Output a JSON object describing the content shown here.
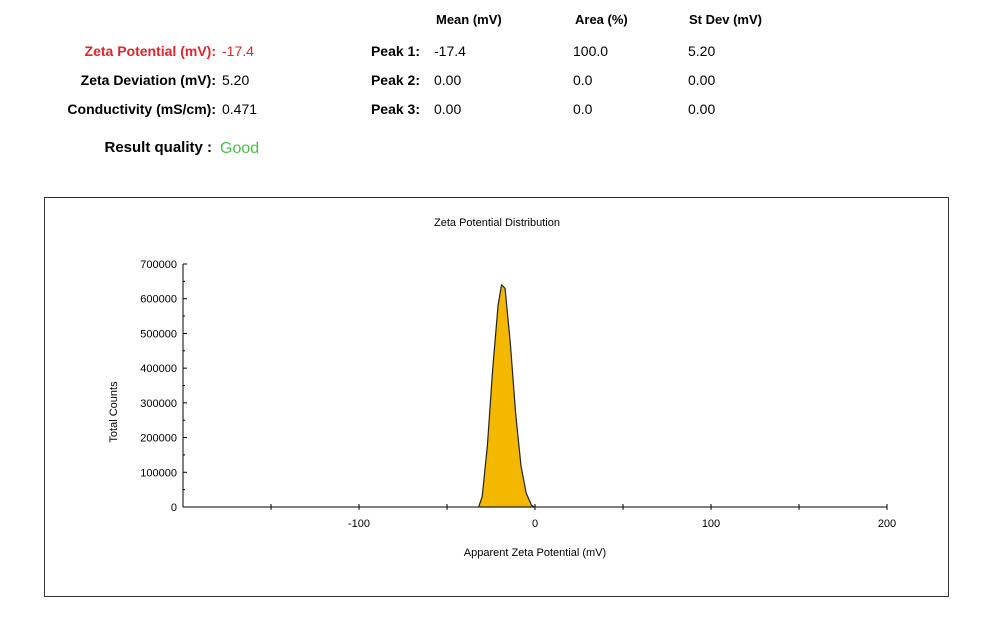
{
  "summary": {
    "zeta_potential": {
      "label": "Zeta Potential (mV):",
      "value": "-17.4"
    },
    "zeta_deviation": {
      "label": "Zeta Deviation (mV):",
      "value": "5.20"
    },
    "conductivity": {
      "label": "Conductivity (mS/cm):",
      "value": "0.471"
    },
    "result_quality": {
      "label": "Result quality :",
      "value": "Good"
    }
  },
  "peaks": {
    "headers": {
      "mean": "Mean (mV)",
      "area": "Area (%)",
      "stdev": "St Dev (mV)"
    },
    "rows": [
      {
        "label": "Peak 1:",
        "mean": "-17.4",
        "area": "100.0",
        "stdev": "5.20"
      },
      {
        "label": "Peak 2:",
        "mean": "0.00",
        "area": "0.0",
        "stdev": "0.00"
      },
      {
        "label": "Peak 3:",
        "mean": "0.00",
        "area": "0.0",
        "stdev": "0.00"
      }
    ]
  },
  "colors": {
    "highlight_label": "#e0262b",
    "quality_good": "#4cbf4c",
    "distribution_fill": "#f5b800",
    "distribution_stroke": "#222222"
  },
  "chart_data": {
    "type": "area",
    "title": "Zeta Potential Distribution",
    "xlabel": "Apparent Zeta Potential (mV)",
    "ylabel": "Total Counts",
    "xlim": [
      -200,
      200
    ],
    "ylim": [
      0,
      700000
    ],
    "x_ticks": [
      -100,
      0,
      100,
      200
    ],
    "y_ticks": [
      0,
      100000,
      200000,
      300000,
      400000,
      500000,
      600000,
      700000
    ],
    "grid": false,
    "series": [
      {
        "x": [
          -32,
          -30,
          -27,
          -24,
          -21,
          -19,
          -17,
          -14,
          -11,
          -8,
          -5,
          -2,
          0
        ],
        "values": [
          0,
          30000,
          180000,
          400000,
          580000,
          640000,
          630000,
          470000,
          270000,
          120000,
          40000,
          5000,
          0
        ]
      }
    ]
  }
}
